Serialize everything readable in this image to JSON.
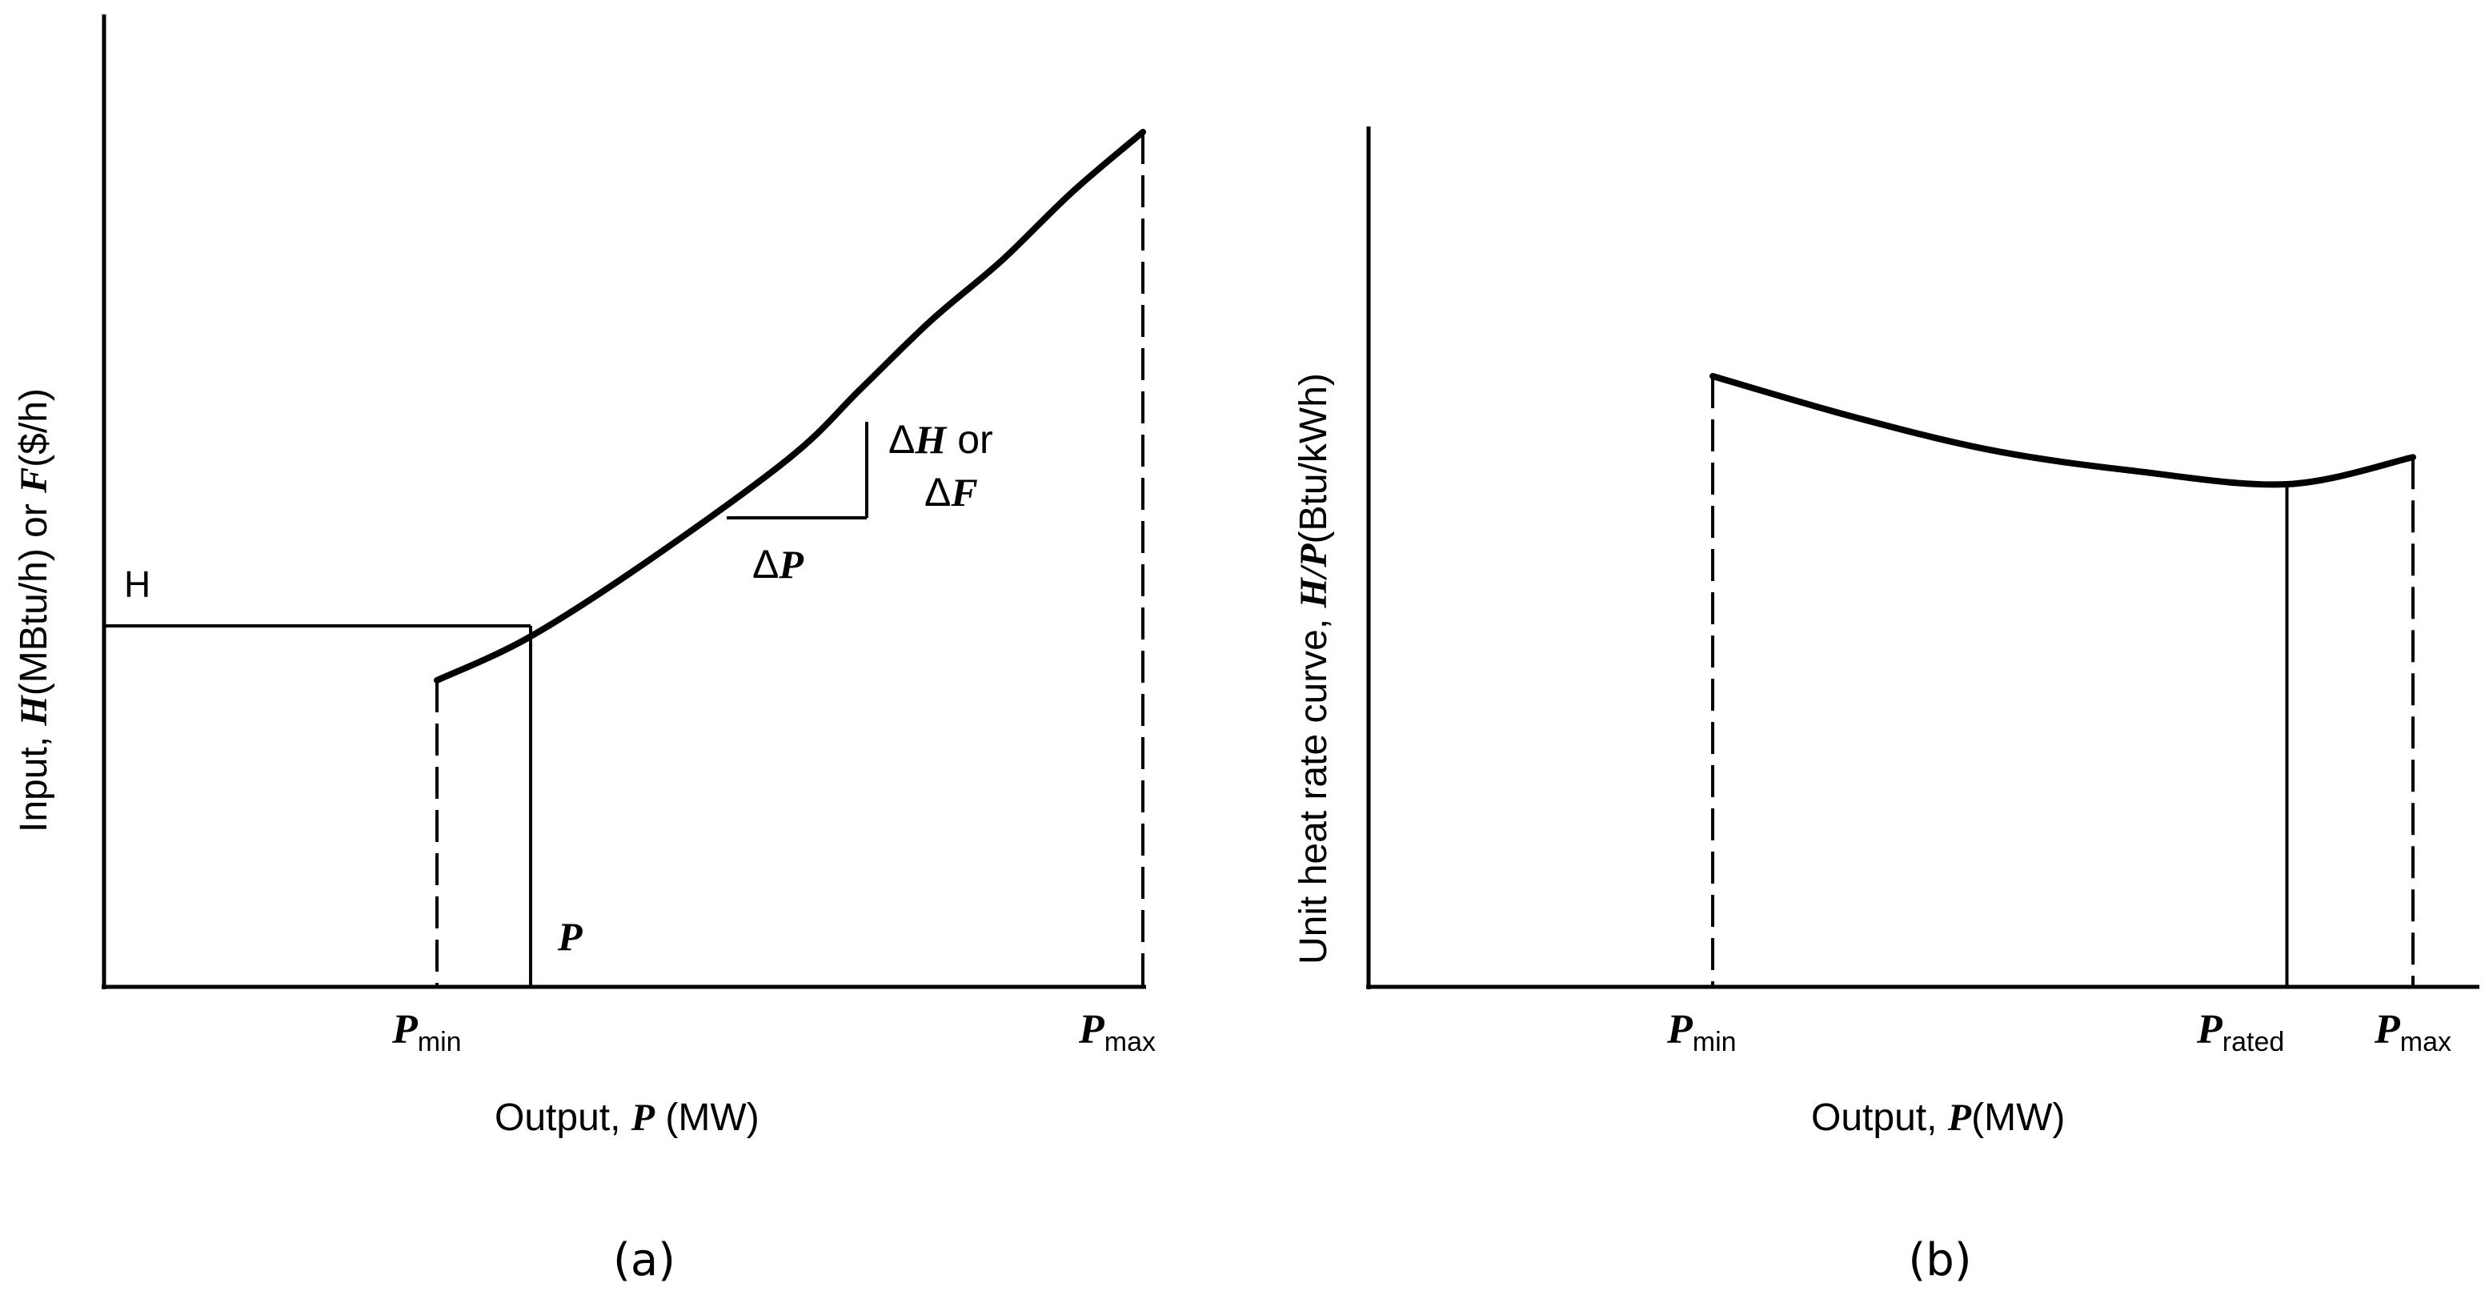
{
  "panels": [
    {
      "caption": "(a)",
      "ylabel": {
        "prefix": "Input, ",
        "sym1": "H",
        "mid": "(MBtu/h) or ",
        "sym2": "F",
        "suffix": "($/h)"
      },
      "xlabel": {
        "prefix": "Output, ",
        "sym": "P",
        "suffix": " (MW)"
      },
      "ticks": [
        {
          "sym": "P",
          "sub": "min"
        },
        {
          "sym": "P",
          "sub": "max"
        }
      ],
      "annotations": {
        "h_marker": "H",
        "p_marker": "P",
        "delta_p": {
          "delta": "Δ",
          "sym": "P"
        },
        "delta_hf_line1": {
          "delta": "Δ",
          "sym": "H",
          "suffix": " or"
        },
        "delta_hf_line2": {
          "delta": "Δ",
          "sym": "F"
        }
      }
    },
    {
      "caption": "(b)",
      "ylabel": {
        "prefix": "Unit heat rate curve, ",
        "sym": "H/P",
        "suffix": "(Btu/kWh)"
      },
      "xlabel": {
        "prefix": "Output, ",
        "sym": "P",
        "suffix": "(MW)"
      },
      "ticks": [
        {
          "sym": "P",
          "sub": "min"
        },
        {
          "sym": "P",
          "sub": "rated"
        },
        {
          "sym": "P",
          "sub": "max"
        }
      ]
    }
  ],
  "chart_data": [
    {
      "type": "line",
      "title": "",
      "description_axis": "input-output curve",
      "x_reference_points": [
        "P_min",
        "P",
        "P_max"
      ],
      "series": [
        {
          "x": [
            0.0,
            0.13,
            0.3,
            0.5,
            0.6,
            0.7,
            0.8,
            0.9,
            1.0
          ],
          "y": [
            0.36,
            0.41,
            0.5,
            0.62,
            0.7,
            0.78,
            0.85,
            0.93,
            1.0
          ]
        }
      ],
      "x_ticks": [
        "P_min",
        "P_max"
      ],
      "grid": false,
      "colors": {
        "curve": "#000000",
        "axis": "#000000",
        "dashed": "#000000"
      }
    },
    {
      "type": "line",
      "title": "",
      "x_reference_points": [
        "P_min",
        "P_rated",
        "P_max"
      ],
      "series": [
        {
          "x": [
            0.0,
            0.2,
            0.4,
            0.6,
            0.82,
            1.0
          ],
          "y": [
            1.0,
            0.94,
            0.89,
            0.86,
            0.84,
            0.88
          ]
        }
      ],
      "x_ticks": [
        "P_min",
        "P_rated",
        "P_max"
      ],
      "grid": false,
      "colors": {
        "curve": "#000000",
        "axis": "#000000",
        "dashed": "#000000"
      }
    }
  ]
}
